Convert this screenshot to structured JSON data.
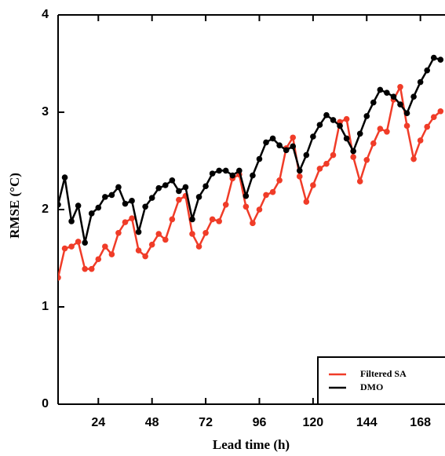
{
  "chart_data": {
    "type": "line",
    "x_label": "Lead time (h)",
    "y_label": "RMSE (°C)",
    "x": [
      6,
      9,
      12,
      15,
      18,
      21,
      24,
      27,
      30,
      33,
      36,
      39,
      42,
      45,
      48,
      51,
      54,
      57,
      60,
      63,
      66,
      69,
      72,
      75,
      78,
      81,
      84,
      87,
      90,
      93,
      96,
      99,
      102,
      105,
      108,
      111,
      114,
      117,
      120,
      123,
      126,
      129,
      132,
      135,
      138,
      141,
      144,
      147,
      150,
      153,
      156,
      159,
      162,
      165,
      168,
      171,
      174,
      177
    ],
    "series": [
      {
        "name": "Filtered SA",
        "color": "#f03c28",
        "values": [
          1.3,
          1.6,
          1.62,
          1.67,
          1.39,
          1.39,
          1.49,
          1.62,
          1.54,
          1.76,
          1.87,
          1.91,
          1.58,
          1.52,
          1.64,
          1.75,
          1.69,
          1.9,
          2.1,
          2.14,
          1.75,
          1.62,
          1.76,
          1.9,
          1.88,
          2.05,
          2.32,
          2.36,
          2.03,
          1.86,
          2.0,
          2.15,
          2.18,
          2.3,
          2.63,
          2.74,
          2.34,
          2.08,
          2.25,
          2.42,
          2.47,
          2.56,
          2.9,
          2.93,
          2.54,
          2.29,
          2.51,
          2.68,
          2.83,
          2.8,
          3.13,
          3.26,
          2.86,
          2.52,
          2.71,
          2.85,
          2.95,
          3.01
        ]
      },
      {
        "name": "DMO",
        "color": "#000000",
        "values": [
          2.05,
          2.33,
          1.88,
          2.04,
          1.66,
          1.96,
          2.02,
          2.13,
          2.15,
          2.23,
          2.06,
          2.09,
          1.77,
          2.03,
          2.12,
          2.22,
          2.25,
          2.3,
          2.19,
          2.23,
          1.9,
          2.13,
          2.24,
          2.37,
          2.4,
          2.4,
          2.35,
          2.4,
          2.14,
          2.35,
          2.52,
          2.69,
          2.73,
          2.66,
          2.61,
          2.65,
          2.4,
          2.56,
          2.75,
          2.87,
          2.97,
          2.92,
          2.86,
          2.73,
          2.6,
          2.78,
          2.96,
          3.1,
          3.23,
          3.2,
          3.16,
          3.08,
          2.99,
          3.16,
          3.31,
          3.43,
          3.56,
          3.54
        ]
      }
    ],
    "xlim": [
      6,
      179
    ],
    "xticks": [
      24,
      48,
      72,
      96,
      120,
      144,
      168
    ],
    "ylim": [
      0,
      4
    ],
    "yticks": [
      0,
      1,
      2,
      3,
      4
    ],
    "grid": false,
    "legend": "lower right"
  }
}
